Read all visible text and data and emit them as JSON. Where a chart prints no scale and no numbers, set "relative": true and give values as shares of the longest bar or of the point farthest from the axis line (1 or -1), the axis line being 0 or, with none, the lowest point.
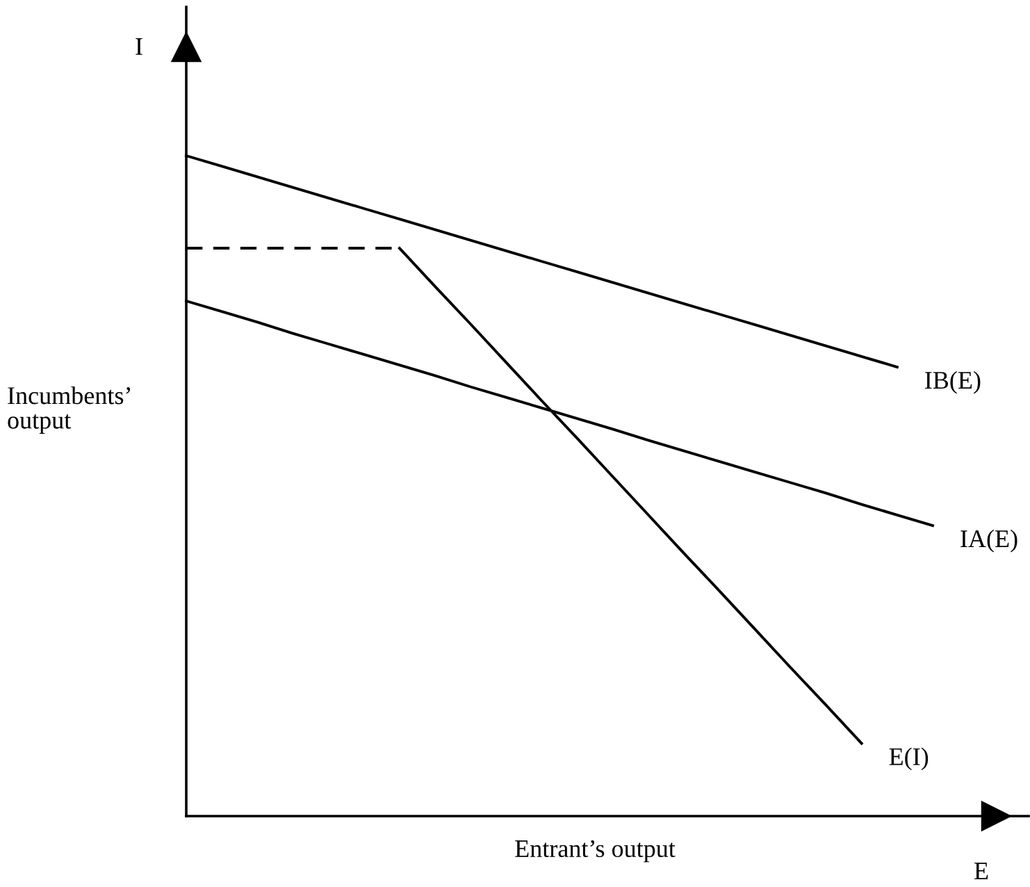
{
  "chart_data": {
    "type": "line",
    "relative": true,
    "xlabel": "Entrant’s output",
    "ylabel": "Incumbents’\noutput",
    "annotations": [
      "I",
      "E"
    ],
    "categories": [
      null,
      null,
      null,
      null,
      null,
      null,
      null,
      null,
      null,
      null,
      null,
      null,
      null,
      null,
      null,
      null,
      null,
      null,
      null,
      null,
      null,
      null
    ],
    "series": [
      {
        "name": "IB(E)",
        "color": "#000000",
        "values": [
          1,
          0.984,
          0.968,
          0.952,
          0.936,
          0.92,
          0.904,
          0.888,
          0.872,
          0.856,
          0.84,
          0.824,
          0.808,
          0.792,
          0.776,
          0.76,
          0.744,
          0.728,
          0.712,
          0.696,
          0.68,
          null
        ]
      },
      {
        "name": "IA(E)",
        "color": "#000000",
        "values": [
          0.78,
          0.764,
          0.748,
          0.731,
          0.715,
          0.699,
          0.683,
          0.667,
          0.65,
          0.634,
          0.618,
          0.602,
          0.586,
          0.569,
          0.553,
          0.537,
          0.521,
          0.505,
          0.489,
          0.472,
          0.456,
          0.44
        ]
      },
      {
        "name": "E(I)",
        "color": "#000000",
        "values": [
          null,
          null,
          null,
          null,
          null,
          null,
          0.86,
          0.802,
          0.745,
          0.687,
          0.629,
          0.572,
          0.514,
          0.456,
          0.398,
          0.341,
          0.283,
          0.225,
          0.168,
          0.11,
          null,
          null
        ]
      },
      {
        "color": "#000000",
        "line_style": "dashed",
        "values": [
          0.86,
          0.86,
          0.86,
          0.86,
          0.86,
          0.86,
          0.86,
          null,
          null,
          null,
          null,
          null,
          null,
          null,
          null,
          null,
          null,
          null,
          null,
          null,
          null,
          null
        ]
      }
    ],
    "legend": false
  }
}
